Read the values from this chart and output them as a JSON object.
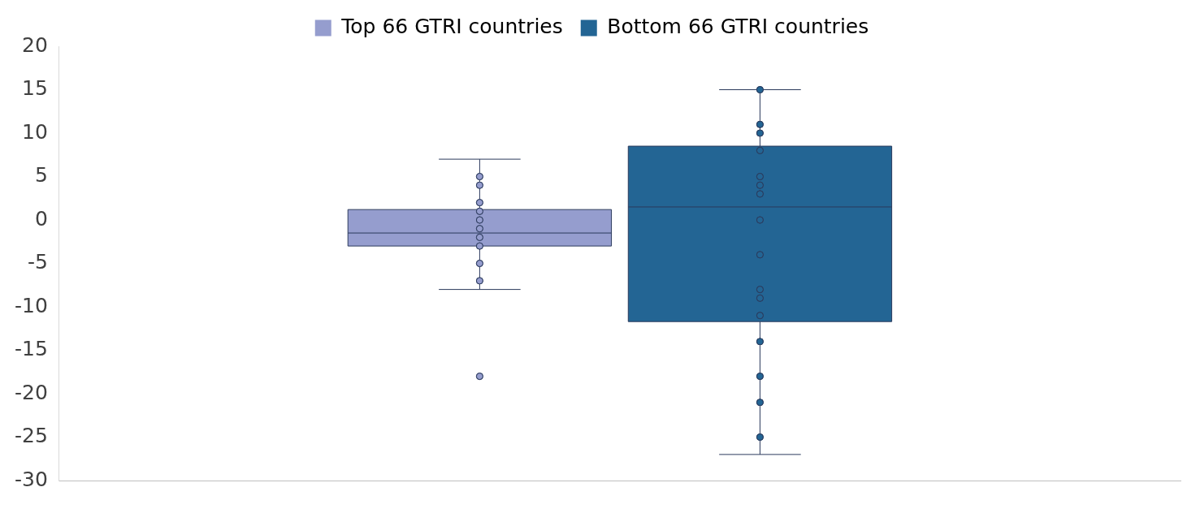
{
  "chart_data": {
    "type": "box",
    "categories": [
      null
    ],
    "ylim": [
      -30,
      20
    ],
    "yticks": [
      -30,
      -25,
      -20,
      -15,
      -10,
      -5,
      0,
      5,
      10,
      15,
      20
    ],
    "grid": false,
    "legend": "top",
    "marker": "circle",
    "series": [
      {
        "name": "Top 66 GTRI countries",
        "color": "#959dce",
        "boxes": [
          {
            "low": -8,
            "q1": -3,
            "median": -1.5,
            "q3": 1.2,
            "high": 7,
            "outliers": [
              5,
              4,
              2,
              1,
              0,
              -1,
              -2,
              -3,
              -5,
              -7,
              -18
            ]
          }
        ]
      },
      {
        "name": "Bottom 66 GTRI countries",
        "color": "#236594",
        "boxes": [
          {
            "low": -27,
            "q1": -11.7,
            "median": 1.5,
            "q3": 8.5,
            "high": 15,
            "outliers": [
              15,
              11,
              10,
              8,
              5,
              4,
              3,
              0,
              -4,
              -8,
              -9,
              -11,
              -14,
              -18,
              -21,
              -25
            ]
          }
        ]
      }
    ]
  }
}
